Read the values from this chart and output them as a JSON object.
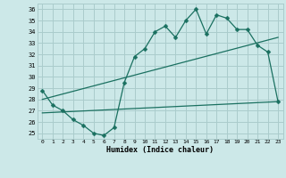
{
  "xlabel": "Humidex (Indice chaleur)",
  "background_color": "#cce8e8",
  "grid_color": "#aacccc",
  "line_color": "#1a7060",
  "xlim": [
    -0.5,
    23.5
  ],
  "ylim": [
    24.5,
    36.5
  ],
  "xticks": [
    0,
    1,
    2,
    3,
    4,
    5,
    6,
    7,
    8,
    9,
    10,
    11,
    12,
    13,
    14,
    15,
    16,
    17,
    18,
    19,
    20,
    21,
    22,
    23
  ],
  "yticks": [
    25,
    26,
    27,
    28,
    29,
    30,
    31,
    32,
    33,
    34,
    35,
    36
  ],
  "line1_x": [
    0,
    1,
    2,
    3,
    4,
    5,
    6,
    7,
    8,
    9,
    10,
    11,
    12,
    13,
    14,
    15,
    16,
    17,
    18,
    19,
    20,
    21,
    22,
    23
  ],
  "line1_y": [
    28.8,
    27.5,
    27.0,
    26.2,
    25.7,
    25.0,
    24.8,
    25.5,
    29.5,
    31.8,
    32.5,
    34.0,
    34.5,
    33.5,
    35.0,
    36.0,
    33.8,
    35.5,
    35.2,
    34.2,
    34.2,
    32.8,
    32.2,
    27.8
  ],
  "line2_x": [
    0,
    23
  ],
  "line2_y": [
    28.0,
    33.5
  ],
  "line3_x": [
    0,
    23
  ],
  "line3_y": [
    26.8,
    27.8
  ],
  "marker_size": 2.5,
  "lw": 0.9
}
